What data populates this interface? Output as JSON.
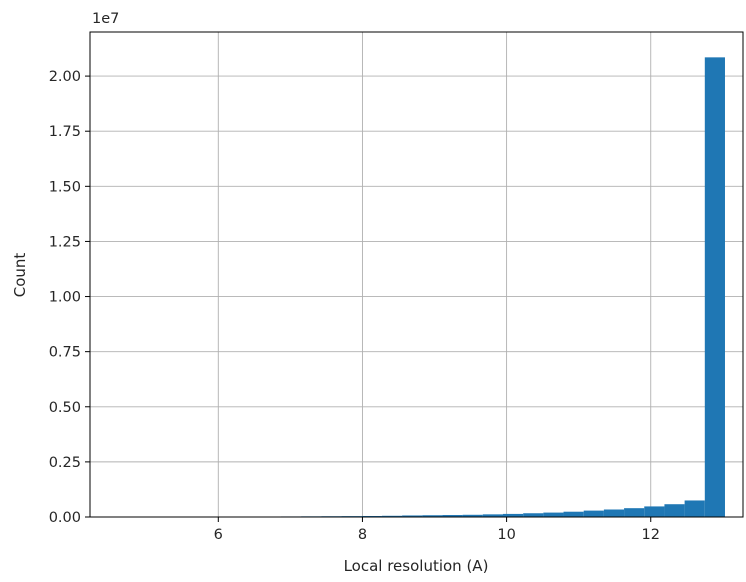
{
  "chart_data": {
    "type": "bar",
    "xlabel": "Local resolution (A)",
    "ylabel": "Count",
    "y_offset_label": "1e7",
    "xlim": [
      4.22,
      13.28
    ],
    "ylim": [
      0,
      22000000
    ],
    "x_ticks": [
      6,
      8,
      10,
      12
    ],
    "x_tick_labels": [
      "6",
      "8",
      "10",
      "12"
    ],
    "y_ticks": [
      0,
      2500000,
      5000000,
      7500000,
      10000000,
      12500000,
      15000000,
      17500000,
      20000000
    ],
    "y_tick_labels": [
      "0.00",
      "0.25",
      "0.50",
      "0.75",
      "1.00",
      "1.25",
      "1.50",
      "1.75",
      "2.00"
    ],
    "grid": true,
    "bar_color": "#1f77b4",
    "bins": [
      {
        "x0": 4.63,
        "x1": 4.91,
        "value": 0
      },
      {
        "x0": 4.91,
        "x1": 5.19,
        "value": 0
      },
      {
        "x0": 5.19,
        "x1": 5.47,
        "value": 0
      },
      {
        "x0": 5.47,
        "x1": 5.75,
        "value": 0
      },
      {
        "x0": 5.75,
        "x1": 6.03,
        "value": 0
      },
      {
        "x0": 6.03,
        "x1": 6.31,
        "value": 0
      },
      {
        "x0": 6.31,
        "x1": 6.59,
        "value": 0
      },
      {
        "x0": 6.59,
        "x1": 6.87,
        "value": 20000
      },
      {
        "x0": 6.87,
        "x1": 7.15,
        "value": 25000
      },
      {
        "x0": 7.15,
        "x1": 7.43,
        "value": 30000
      },
      {
        "x0": 7.43,
        "x1": 7.71,
        "value": 35000
      },
      {
        "x0": 7.71,
        "x1": 7.99,
        "value": 40000
      },
      {
        "x0": 7.99,
        "x1": 8.27,
        "value": 45000
      },
      {
        "x0": 8.27,
        "x1": 8.55,
        "value": 55000
      },
      {
        "x0": 8.55,
        "x1": 8.83,
        "value": 70000
      },
      {
        "x0": 8.83,
        "x1": 9.11,
        "value": 80000
      },
      {
        "x0": 9.11,
        "x1": 9.39,
        "value": 90000
      },
      {
        "x0": 9.39,
        "x1": 9.67,
        "value": 100000
      },
      {
        "x0": 9.67,
        "x1": 9.95,
        "value": 120000
      },
      {
        "x0": 9.95,
        "x1": 10.23,
        "value": 140000
      },
      {
        "x0": 10.23,
        "x1": 10.51,
        "value": 170000
      },
      {
        "x0": 10.51,
        "x1": 10.79,
        "value": 200000
      },
      {
        "x0": 10.79,
        "x1": 11.07,
        "value": 240000
      },
      {
        "x0": 11.07,
        "x1": 11.35,
        "value": 290000
      },
      {
        "x0": 11.35,
        "x1": 11.63,
        "value": 340000
      },
      {
        "x0": 11.63,
        "x1": 11.91,
        "value": 400000
      },
      {
        "x0": 11.91,
        "x1": 12.19,
        "value": 480000
      },
      {
        "x0": 12.19,
        "x1": 12.47,
        "value": 580000
      },
      {
        "x0": 12.47,
        "x1": 12.75,
        "value": 750000
      },
      {
        "x0": 12.75,
        "x1": 13.03,
        "value": 20850000
      }
    ]
  }
}
